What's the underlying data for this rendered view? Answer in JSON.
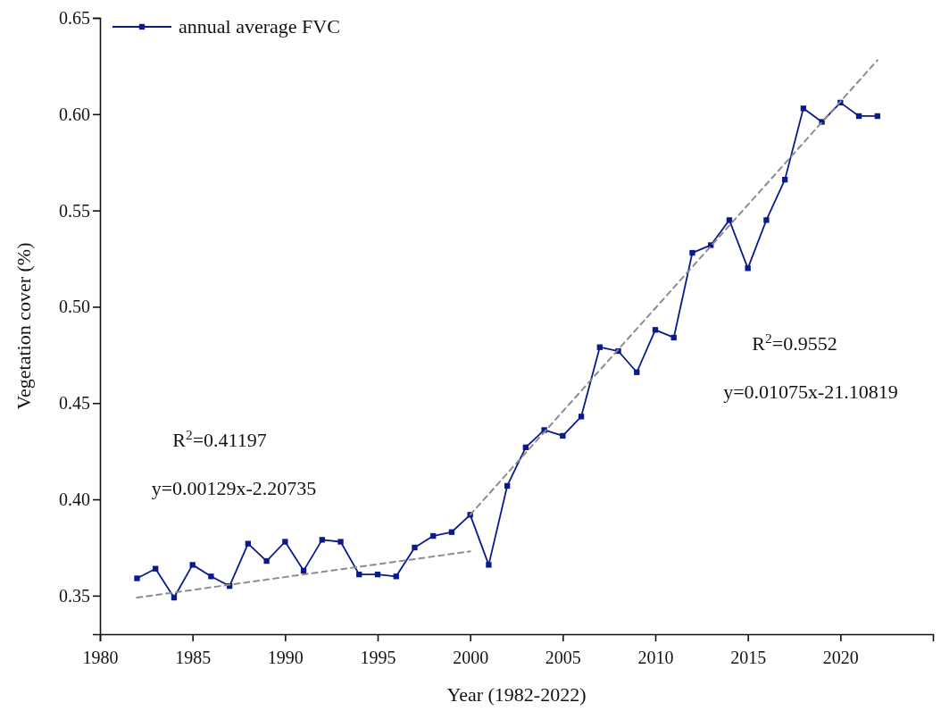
{
  "chart_data": {
    "type": "line",
    "xlabel": "Year (1982-2022)",
    "ylabel": "Vegetation cover (%)",
    "xlim": [
      1980,
      2025
    ],
    "xticks": [
      1980,
      1985,
      1990,
      1995,
      2000,
      2005,
      2010,
      2015,
      2020
    ],
    "ylim": [
      0.33,
      0.65
    ],
    "yticks": [
      {
        "value": 0.35,
        "label": "0.35"
      },
      {
        "value": 0.4,
        "label": "0.40"
      },
      {
        "value": 0.45,
        "label": "0.45"
      },
      {
        "value": 0.5,
        "label": "0.50"
      },
      {
        "value": 0.55,
        "label": "0.55"
      },
      {
        "value": 0.6,
        "label": "0.60"
      },
      {
        "value": 0.65,
        "label": "0.65"
      }
    ],
    "grid": false,
    "legend": "top left",
    "marker": "square",
    "line_style": "solid",
    "x": [
      1982,
      1983,
      1984,
      1985,
      1986,
      1987,
      1988,
      1989,
      1990,
      1991,
      1992,
      1993,
      1994,
      1995,
      1996,
      1997,
      1998,
      1999,
      2000,
      2001,
      2002,
      2003,
      2004,
      2005,
      2006,
      2007,
      2008,
      2009,
      2010,
      2011,
      2012,
      2013,
      2014,
      2015,
      2016,
      2017,
      2018,
      2019,
      2020,
      2021,
      2022
    ],
    "series": [
      {
        "name": "annual average FVC",
        "color": "#0a1a8c",
        "values": [
          0.359,
          0.364,
          0.349,
          0.366,
          0.36,
          0.355,
          0.377,
          0.368,
          0.378,
          0.363,
          0.379,
          0.378,
          0.361,
          0.361,
          0.36,
          0.375,
          0.381,
          0.383,
          0.392,
          0.366,
          0.407,
          0.427,
          0.436,
          0.433,
          0.443,
          0.479,
          0.477,
          0.466,
          0.488,
          0.484,
          0.528,
          0.532,
          0.545,
          0.52,
          0.545,
          0.566,
          0.603,
          0.596,
          0.606,
          0.599,
          0.599
        ]
      },
      {
        "type": "line",
        "color": "#8c8c8c",
        "line_style": "dashed",
        "marker": "none",
        "x": [
          1982,
          2000
        ],
        "values": [
          0.349,
          0.373
        ]
      },
      {
        "type": "line",
        "color": "#8c8c8c",
        "line_style": "dashed",
        "marker": "none",
        "x": [
          2000,
          2022
        ],
        "values": [
          0.392,
          0.628
        ]
      }
    ],
    "annotations": [
      "R$^{2}$=0.41197",
      "y=0.00129x-2.20735",
      "R$^{2}$=0.9552",
      "y=0.01075x-21.10819"
    ]
  }
}
